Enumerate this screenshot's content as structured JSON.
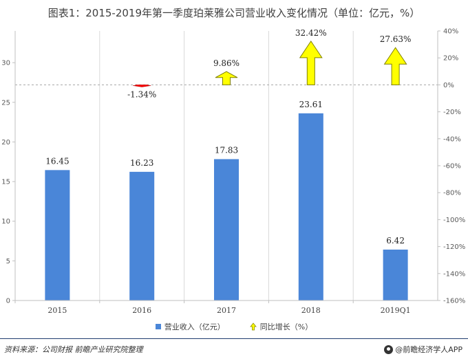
{
  "title": "图表1：2015-2019年第一季度珀莱雅公司营业收入变化情况（单位：亿元，%）",
  "chart_data": {
    "type": "bar",
    "categories": [
      "2015",
      "2016",
      "2017",
      "2018",
      "2019Q1"
    ],
    "series": [
      {
        "name": "营业收入（亿元）",
        "axis": "left",
        "type": "bar",
        "color": "#4a86d8",
        "values": [
          16.45,
          16.23,
          17.83,
          23.61,
          6.42
        ],
        "labels": [
          "16.45",
          "16.23",
          "17.83",
          "23.61",
          "6.42"
        ]
      },
      {
        "name": "同比增长（%）",
        "axis": "right",
        "type": "arrow",
        "up_color": "#ffff00",
        "down_color": "#ff0000",
        "values": [
          null,
          -1.34,
          9.86,
          32.42,
          27.63
        ],
        "labels": [
          "",
          "-1.34%",
          "9.86%",
          "32.42%",
          "27.63%"
        ]
      }
    ],
    "y_left": {
      "ylim": [
        0,
        34
      ],
      "ticks": [
        0,
        5,
        10,
        15,
        20,
        25,
        30
      ],
      "tick_labels": [
        "0",
        "5",
        "10",
        "15",
        "20",
        "25",
        "30"
      ]
    },
    "y_right": {
      "ylim": [
        -160,
        40
      ],
      "ticks": [
        40,
        20,
        0,
        -20,
        -40,
        -60,
        -80,
        -100,
        -120,
        -140,
        -160
      ],
      "tick_labels": [
        "40%",
        "20%",
        "0%",
        "-20%",
        "-40%",
        "-60%",
        "-80%",
        "-100%",
        "-120%",
        "-140%",
        "-160%"
      ]
    },
    "zero_line": "dashed",
    "grid": "vertical",
    "legend_position": "bottom"
  },
  "legend": {
    "bar_label": "营业收入（亿元）",
    "arrow_label": "同比增长（%）"
  },
  "footer": {
    "source": "资料来源：公司财报  前瞻产业研究院整理",
    "brand": "@前瞻经济学人APP"
  }
}
